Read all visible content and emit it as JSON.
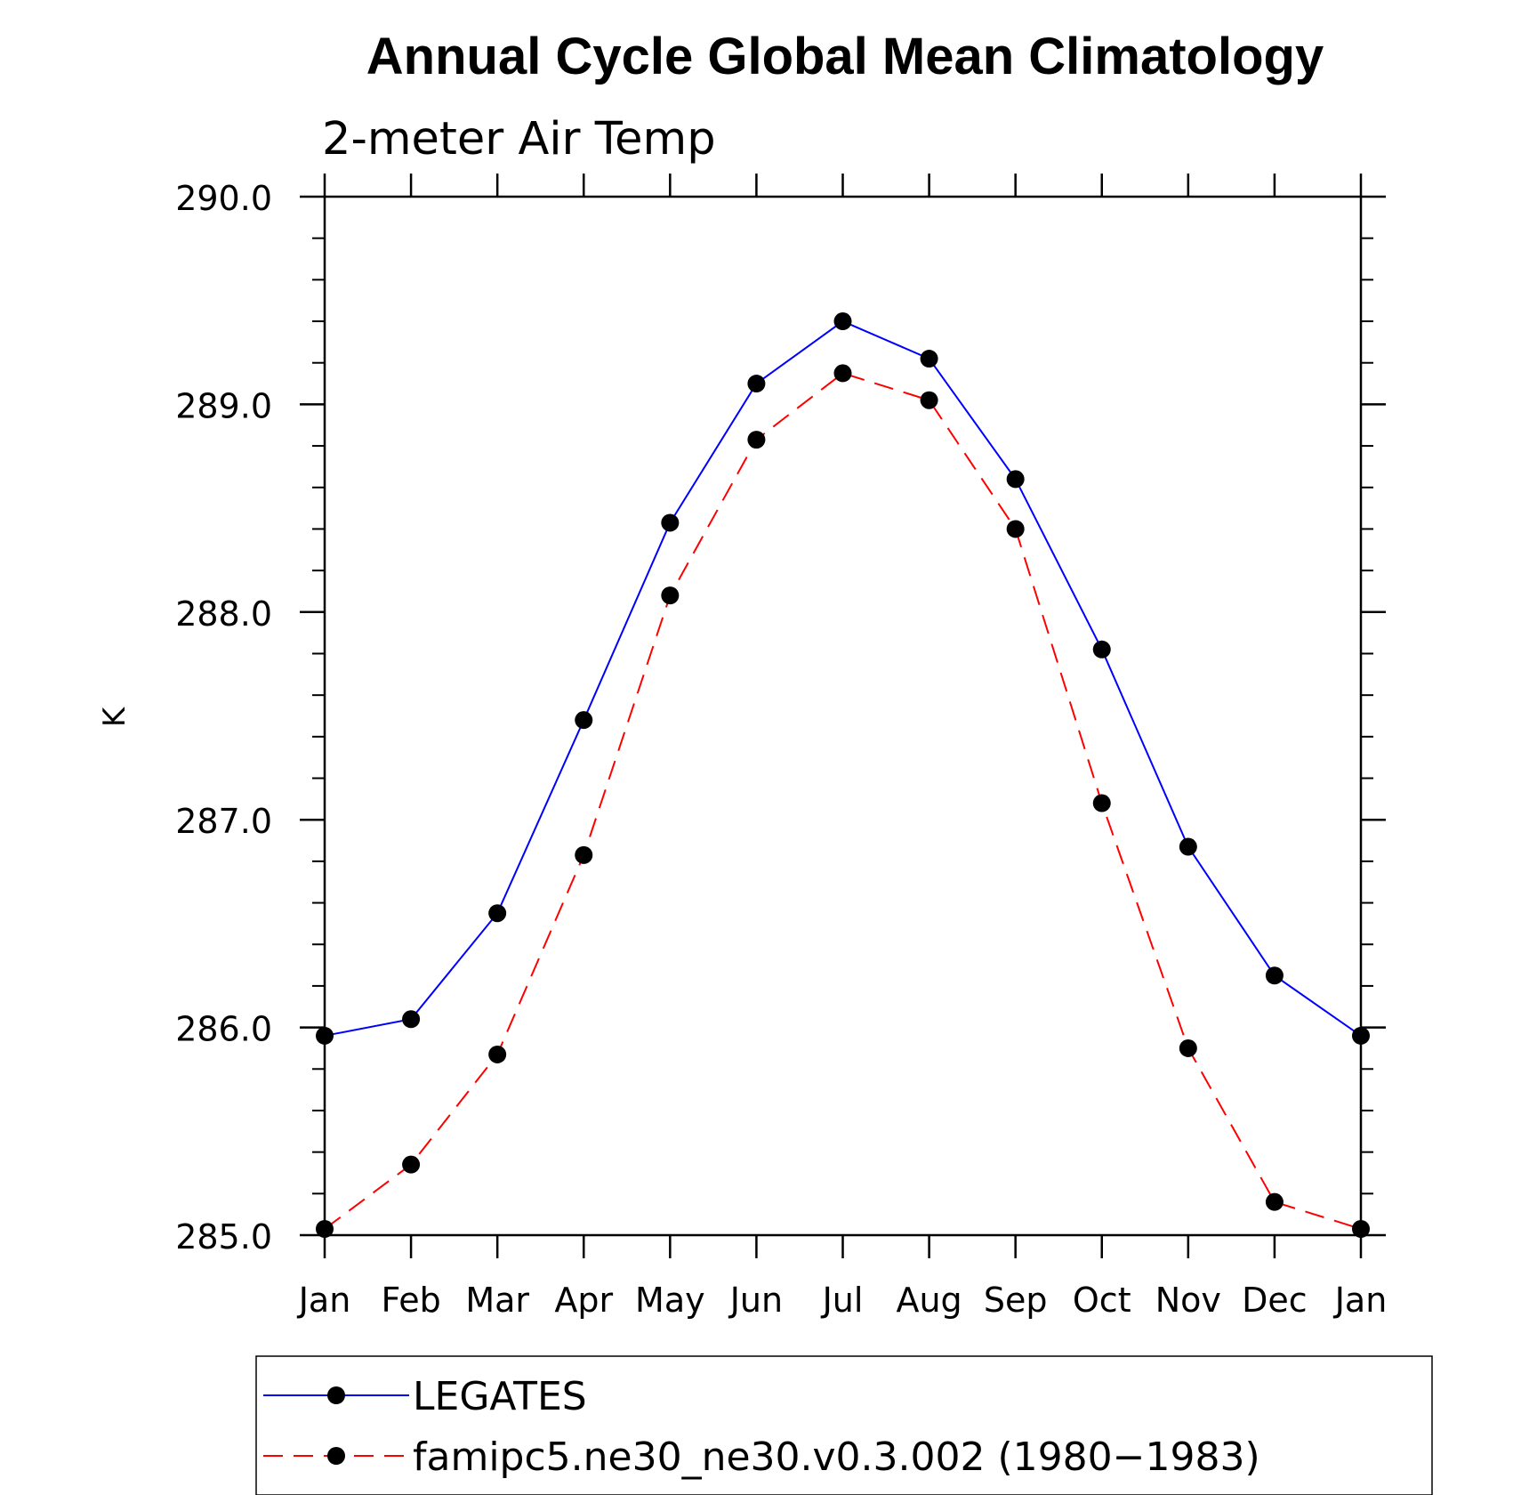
{
  "chart_data": {
    "type": "line",
    "title": "Annual Cycle Global Mean Climatology",
    "subtitle": "2-meter Air Temp",
    "ylabel": "K",
    "xlabel": "",
    "categories": [
      "Jan",
      "Feb",
      "Mar",
      "Apr",
      "May",
      "Jun",
      "Jul",
      "Aug",
      "Sep",
      "Oct",
      "Nov",
      "Dec",
      "Jan"
    ],
    "ylim": [
      285.0,
      290.0
    ],
    "yticks": [
      "285.0",
      "286.0",
      "287.0",
      "288.0",
      "289.0",
      "290.0"
    ],
    "grid": false,
    "legend_position": "bottom",
    "series": [
      {
        "name": "LEGATES",
        "color": "#0000ff",
        "line_style": "solid",
        "marker": "filled-circle",
        "values": [
          285.96,
          286.04,
          286.55,
          287.48,
          288.43,
          289.1,
          289.4,
          289.22,
          288.64,
          287.82,
          286.87,
          286.25,
          285.96
        ]
      },
      {
        "name": "famipc5.ne30_ne30.v0.3.002 (1980−1983)",
        "color": "#ff0000",
        "line_style": "dashed",
        "marker": "filled-circle",
        "values": [
          285.03,
          285.34,
          285.87,
          286.83,
          288.08,
          288.83,
          289.15,
          289.02,
          288.4,
          287.08,
          285.9,
          285.16,
          285.03
        ]
      }
    ]
  }
}
